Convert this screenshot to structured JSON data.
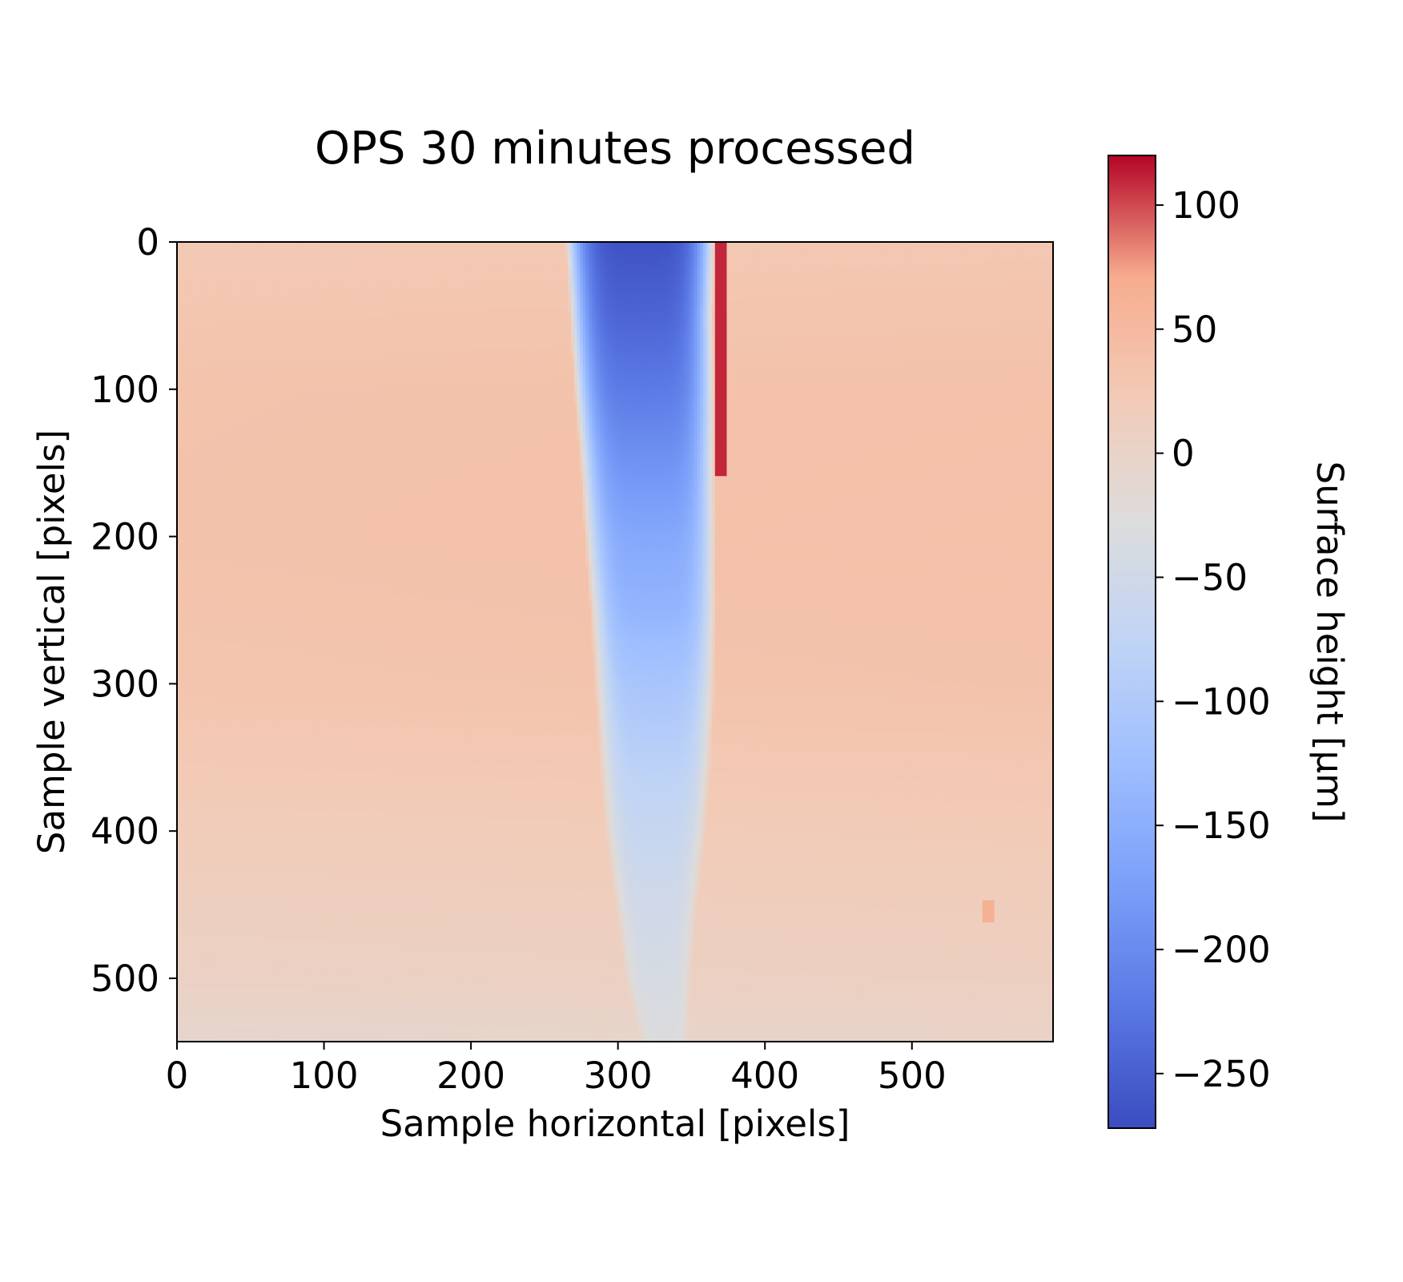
{
  "chart_data": {
    "type": "heatmap",
    "title": "OPS 30 minutes processed",
    "xlabel": "Sample horizontal [pixels]",
    "ylabel": "Sample vertical [pixels]",
    "xlim": [
      0,
      596
    ],
    "ylim": [
      543,
      0
    ],
    "x_ticks": [
      0,
      100,
      200,
      300,
      400,
      500
    ],
    "y_ticks": [
      0,
      100,
      200,
      300,
      400,
      500
    ],
    "colorbar": {
      "label": "Surface height [μm]",
      "colormap": "coolwarm",
      "range": [
        -272,
        120
      ],
      "ticks": [
        100,
        50,
        0,
        -50,
        -100,
        -150,
        -200,
        -250
      ],
      "tick_labels": [
        "100",
        "50",
        "0",
        "−50",
        "−100",
        "−150",
        "−200",
        "−250"
      ]
    },
    "background_level": {
      "y": [
        0,
        100,
        200,
        300,
        400,
        500,
        543
      ],
      "left_um": [
        25,
        35,
        36,
        32,
        18,
        5,
        -8
      ],
      "right_um": [
        28,
        38,
        40,
        36,
        22,
        10,
        0
      ]
    },
    "channel": {
      "y": [
        0,
        50,
        100,
        150,
        200,
        250,
        300,
        350,
        400,
        450,
        500,
        543
      ],
      "left_edge_x": [
        264,
        267,
        270,
        274,
        277,
        281,
        284,
        287,
        291,
        298,
        305,
        316
      ],
      "right_edge_x": [
        366,
        365,
        366,
        366,
        367,
        367,
        366,
        364,
        360,
        354,
        350,
        347
      ],
      "floor_um": [
        -265,
        -245,
        -220,
        -190,
        -160,
        -140,
        -110,
        -85,
        -65,
        -50,
        -40,
        -30
      ]
    },
    "features": [
      {
        "x": 370,
        "y0": 0,
        "y1": 160,
        "um": 110
      },
      {
        "x": 552,
        "y0": 446,
        "y1": 463,
        "um": 65
      }
    ]
  }
}
